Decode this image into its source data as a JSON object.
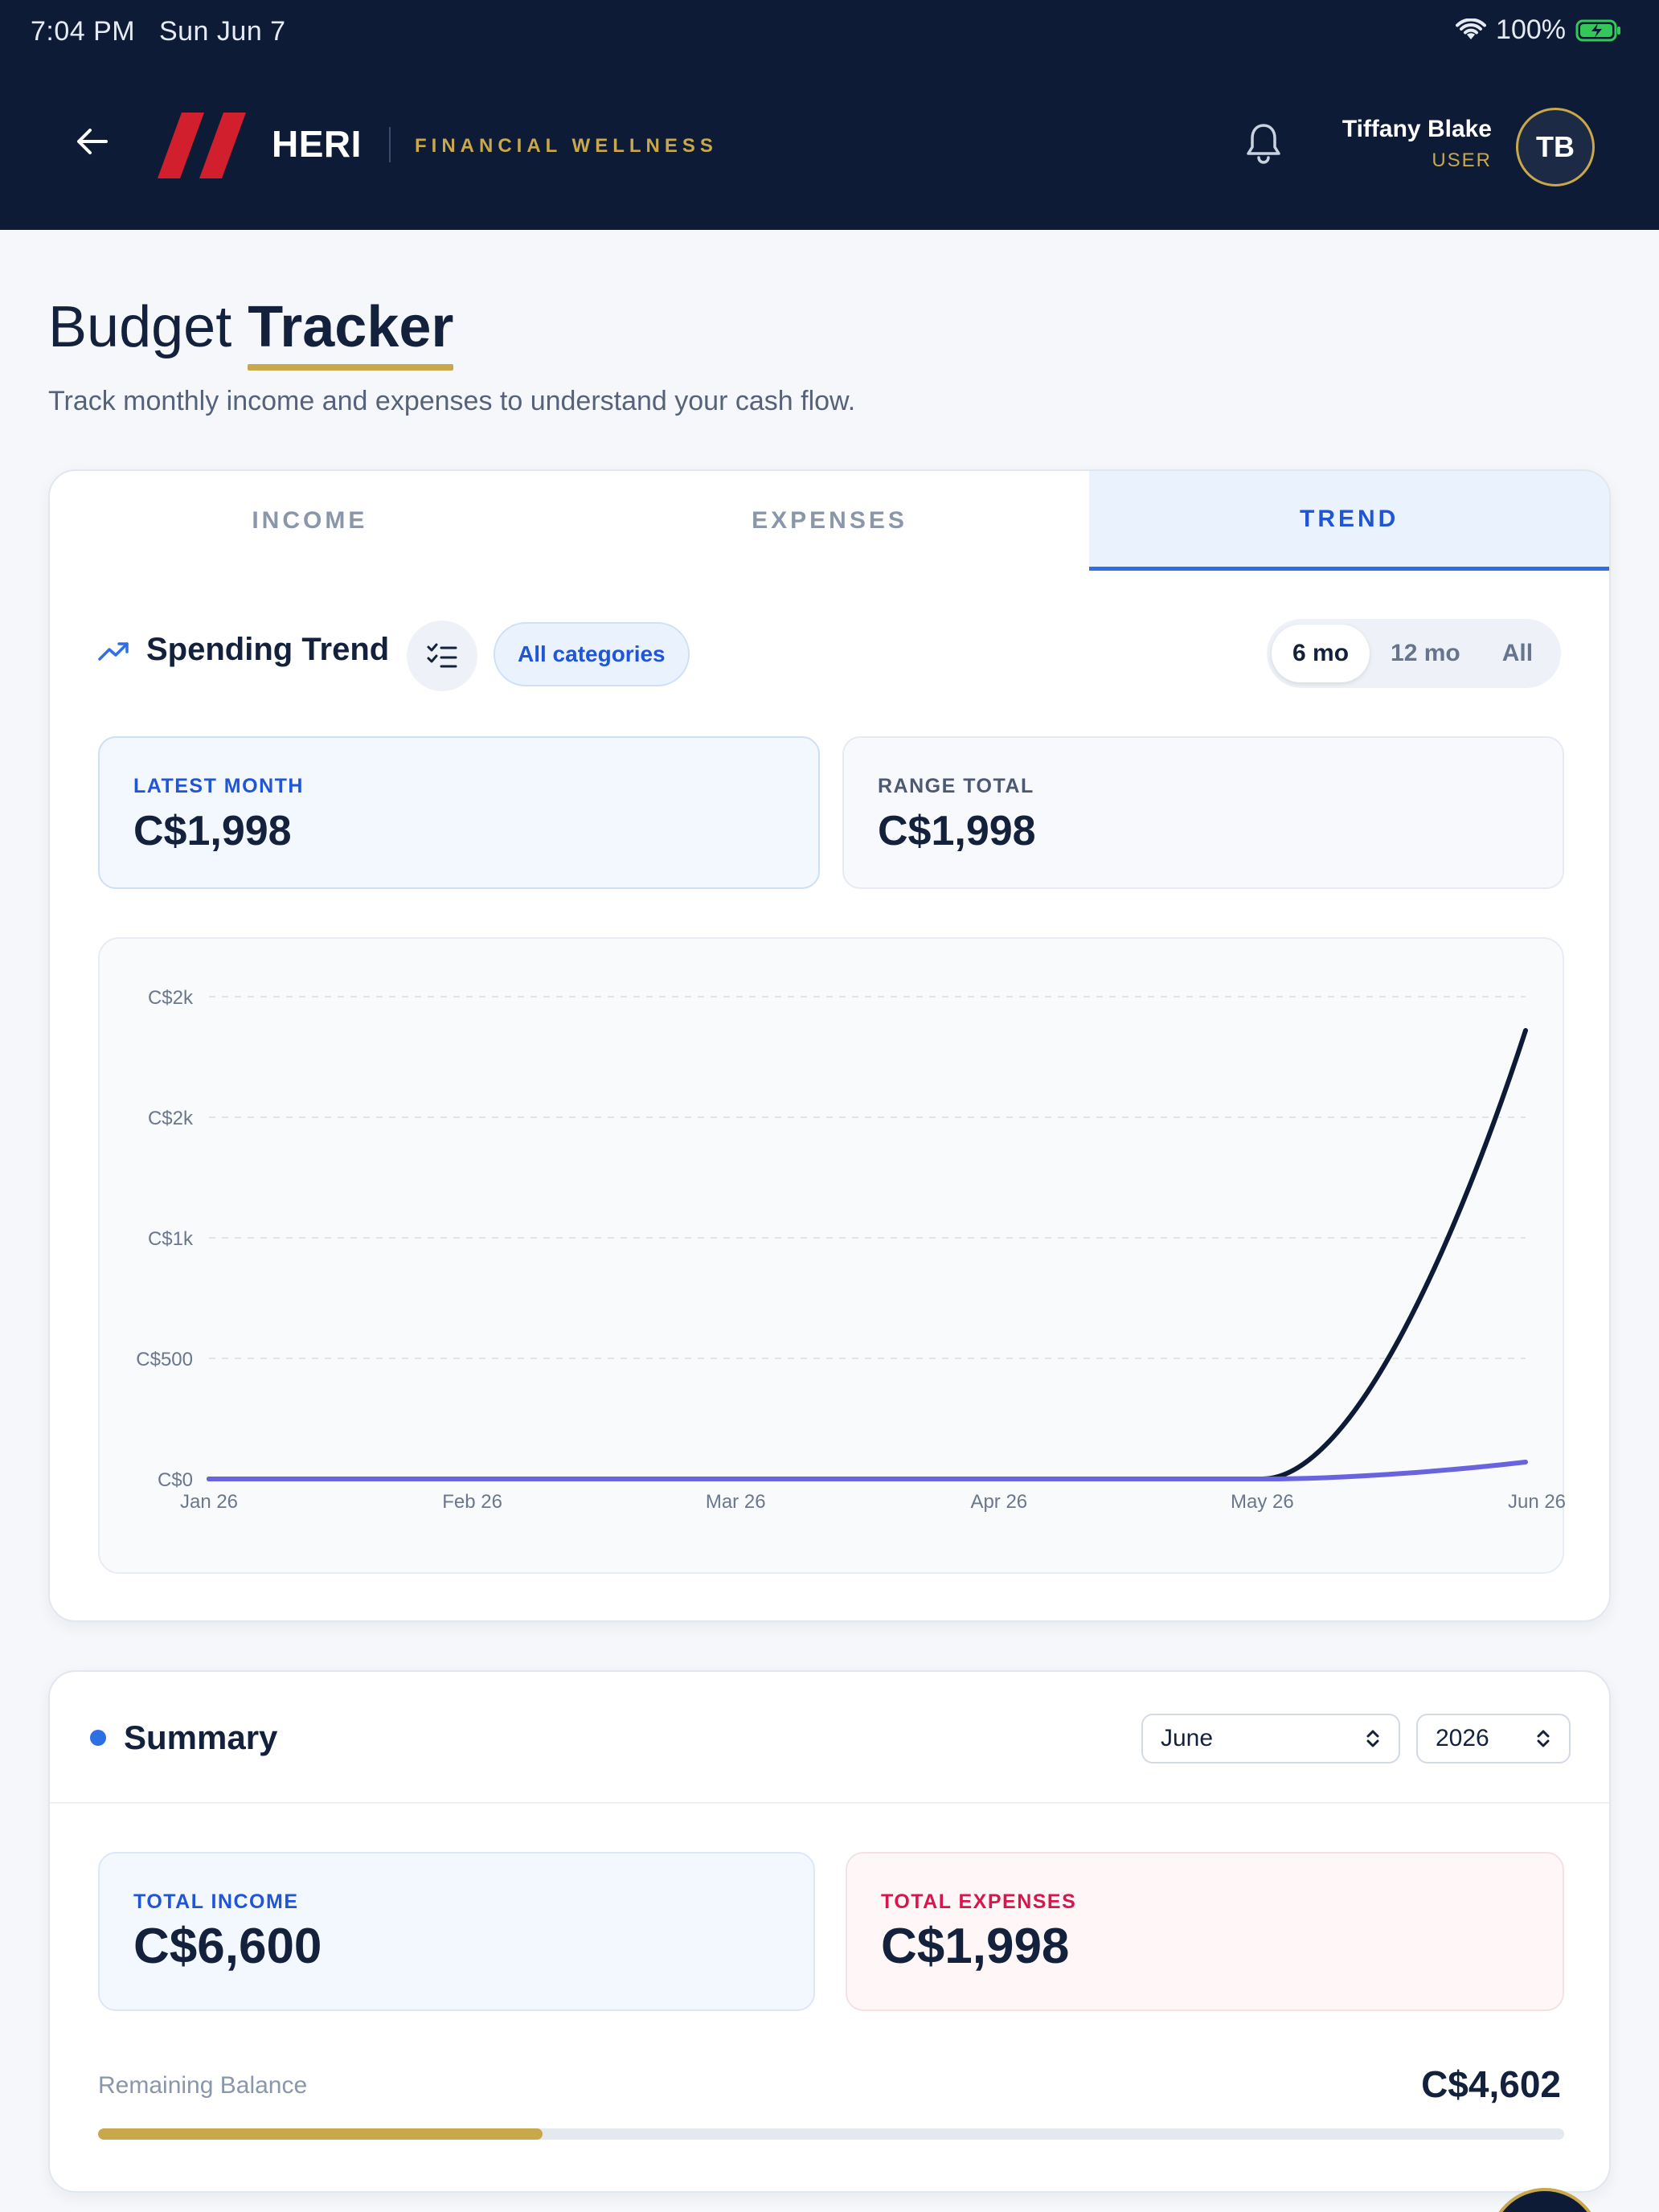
{
  "status_bar": {
    "time": "7:04 PM",
    "date": "Sun Jun 7",
    "battery": "100%"
  },
  "header": {
    "brand": "HERI",
    "brand_subtitle": "FINANCIAL WELLNESS",
    "user_name": "Tiffany Blake",
    "user_role": "USER",
    "avatar_initials": "TB"
  },
  "page": {
    "title_light": "Budget",
    "title_strong": "Tracker",
    "subtitle": "Track monthly income and expenses to understand your cash flow."
  },
  "tabs": [
    {
      "label": "INCOME",
      "active": false
    },
    {
      "label": "EXPENSES",
      "active": false
    },
    {
      "label": "TREND",
      "active": true
    }
  ],
  "trend": {
    "title": "Spending Trend",
    "category_chip": "All categories",
    "ranges": [
      {
        "label": "6 mo",
        "active": true
      },
      {
        "label": "12 mo",
        "active": false
      },
      {
        "label": "All",
        "active": false
      }
    ],
    "latest_month_label": "LATEST MONTH",
    "latest_month_value": "C$1,998",
    "range_total_label": "RANGE TOTAL",
    "range_total_value": "C$1,998"
  },
  "chart_data": {
    "type": "line",
    "x": [
      "Jan 26",
      "Feb 26",
      "Mar 26",
      "Apr 26",
      "May 26",
      "Jun 26"
    ],
    "y_ticks": [
      {
        "label": "C$2k",
        "value": 2000
      },
      {
        "label": "C$2k",
        "value": 1500
      },
      {
        "label": "C$1k",
        "value": 1000
      },
      {
        "label": "C$500",
        "value": 500
      },
      {
        "label": "C$0",
        "value": 0
      }
    ],
    "ylim": [
      0,
      2000
    ],
    "grid": true,
    "series": [
      {
        "values": [
          0,
          0,
          0,
          0,
          0,
          1860
        ],
        "color": "#0d1b36"
      },
      {
        "values": [
          0,
          0,
          0,
          0,
          0,
          70
        ],
        "color": "#6a63e0"
      }
    ]
  },
  "summary": {
    "title": "Summary",
    "month": "June",
    "year": "2026",
    "total_income_label": "TOTAL INCOME",
    "total_income_value": "C$6,600",
    "total_expenses_label": "TOTAL EXPENSES",
    "total_expenses_value": "C$1,998",
    "remaining_label": "Remaining Balance",
    "remaining_value": "C$4,602",
    "spent_fraction": 0.303
  },
  "colors": {
    "navy": "#0d1b36",
    "gold": "#c9a84c",
    "accent": "#2f6fe4",
    "danger": "#d8164d"
  }
}
